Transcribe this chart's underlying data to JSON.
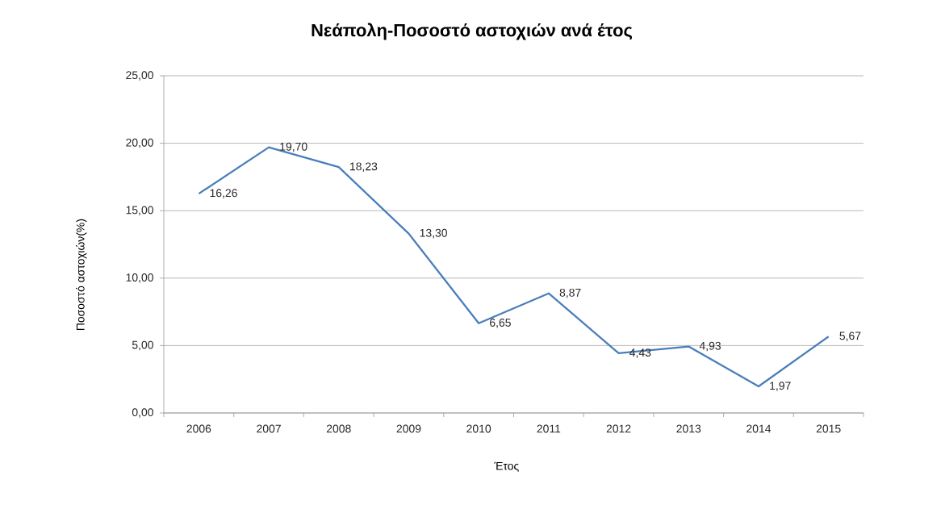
{
  "chart_data": {
    "type": "line",
    "title": "Νεάπολη-Ποσοστό αστοχιών ανά έτος",
    "xlabel": "Έτος",
    "ylabel": "Ποσοστό αστοχιών(%)",
    "categories": [
      "2006",
      "2007",
      "2008",
      "2009",
      "2010",
      "2011",
      "2012",
      "2013",
      "2014",
      "2015"
    ],
    "values": [
      16.26,
      19.7,
      18.23,
      13.3,
      6.65,
      8.87,
      4.43,
      4.93,
      1.97,
      5.67
    ],
    "value_labels": [
      "16,26",
      "19,70",
      "18,23",
      "13,30",
      "6,65",
      "8,87",
      "4,43",
      "4,93",
      "1,97",
      "5,67"
    ],
    "color": "#4a7ebb",
    "ylim": [
      0,
      25
    ],
    "yticks": [
      {
        "value": 0,
        "label": "0,00"
      },
      {
        "value": 5,
        "label": "5,00"
      },
      {
        "value": 10,
        "label": "10,00"
      },
      {
        "value": 15,
        "label": "15,00"
      },
      {
        "value": 20,
        "label": "20,00"
      },
      {
        "value": 25,
        "label": "25,00"
      }
    ],
    "grid": "y"
  }
}
